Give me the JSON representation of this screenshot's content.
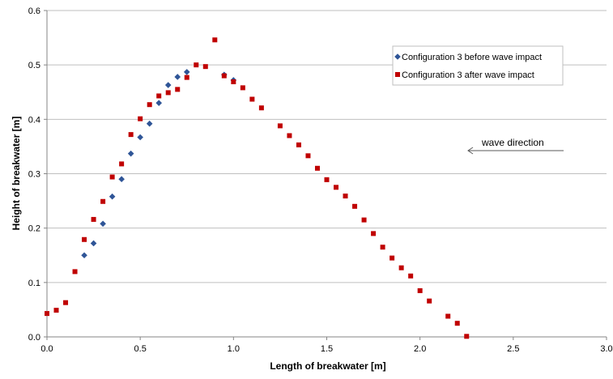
{
  "chart_data": {
    "type": "scatter",
    "title": "",
    "xlabel": "Length of breakwater [m]",
    "ylabel": "Height of breakwater [m]",
    "xlim": [
      0,
      3
    ],
    "ylim": [
      0,
      0.6
    ],
    "xticks": [
      "0.0",
      "0.5",
      "1.0",
      "1.5",
      "2.0",
      "2.5",
      "3.0"
    ],
    "yticks": [
      "0.0",
      "0.1",
      "0.2",
      "0.3",
      "0.4",
      "0.5",
      "0.6"
    ],
    "grid": "horizontal",
    "legend_position": "top-right",
    "annotation": "wave direction",
    "series": [
      {
        "name": "Configuration 3 before wave impact",
        "color": "#2F5597",
        "marker": "diamond",
        "points": [
          [
            0.2,
            0.15
          ],
          [
            0.25,
            0.172
          ],
          [
            0.3,
            0.208
          ],
          [
            0.35,
            0.258
          ],
          [
            0.4,
            0.29
          ],
          [
            0.45,
            0.337
          ],
          [
            0.5,
            0.367
          ],
          [
            0.55,
            0.392
          ],
          [
            0.6,
            0.43
          ],
          [
            0.65,
            0.463
          ],
          [
            0.7,
            0.478
          ],
          [
            0.75,
            0.487
          ],
          [
            0.95,
            0.482
          ],
          [
            1.0,
            0.472
          ]
        ]
      },
      {
        "name": "Configuration 3 after wave impact",
        "color": "#C00000",
        "marker": "square",
        "points": [
          [
            0.0,
            0.043
          ],
          [
            0.05,
            0.049
          ],
          [
            0.1,
            0.063
          ],
          [
            0.15,
            0.12
          ],
          [
            0.2,
            0.179
          ],
          [
            0.25,
            0.216
          ],
          [
            0.3,
            0.249
          ],
          [
            0.35,
            0.294
          ],
          [
            0.4,
            0.318
          ],
          [
            0.45,
            0.372
          ],
          [
            0.5,
            0.401
          ],
          [
            0.55,
            0.427
          ],
          [
            0.6,
            0.443
          ],
          [
            0.65,
            0.449
          ],
          [
            0.7,
            0.455
          ],
          [
            0.75,
            0.477
          ],
          [
            0.8,
            0.5
          ],
          [
            0.85,
            0.497
          ],
          [
            0.9,
            0.546
          ],
          [
            0.95,
            0.48
          ],
          [
            1.0,
            0.469
          ],
          [
            1.05,
            0.458
          ],
          [
            1.1,
            0.437
          ],
          [
            1.15,
            0.421
          ],
          [
            1.25,
            0.388
          ],
          [
            1.3,
            0.37
          ],
          [
            1.35,
            0.353
          ],
          [
            1.4,
            0.333
          ],
          [
            1.45,
            0.31
          ],
          [
            1.5,
            0.289
          ],
          [
            1.55,
            0.275
          ],
          [
            1.6,
            0.259
          ],
          [
            1.65,
            0.24
          ],
          [
            1.7,
            0.215
          ],
          [
            1.75,
            0.19
          ],
          [
            1.8,
            0.165
          ],
          [
            1.85,
            0.145
          ],
          [
            1.9,
            0.127
          ],
          [
            1.95,
            0.112
          ],
          [
            2.0,
            0.085
          ],
          [
            2.05,
            0.066
          ],
          [
            2.15,
            0.038
          ],
          [
            2.2,
            0.025
          ],
          [
            2.25,
            0.001
          ]
        ]
      }
    ]
  }
}
